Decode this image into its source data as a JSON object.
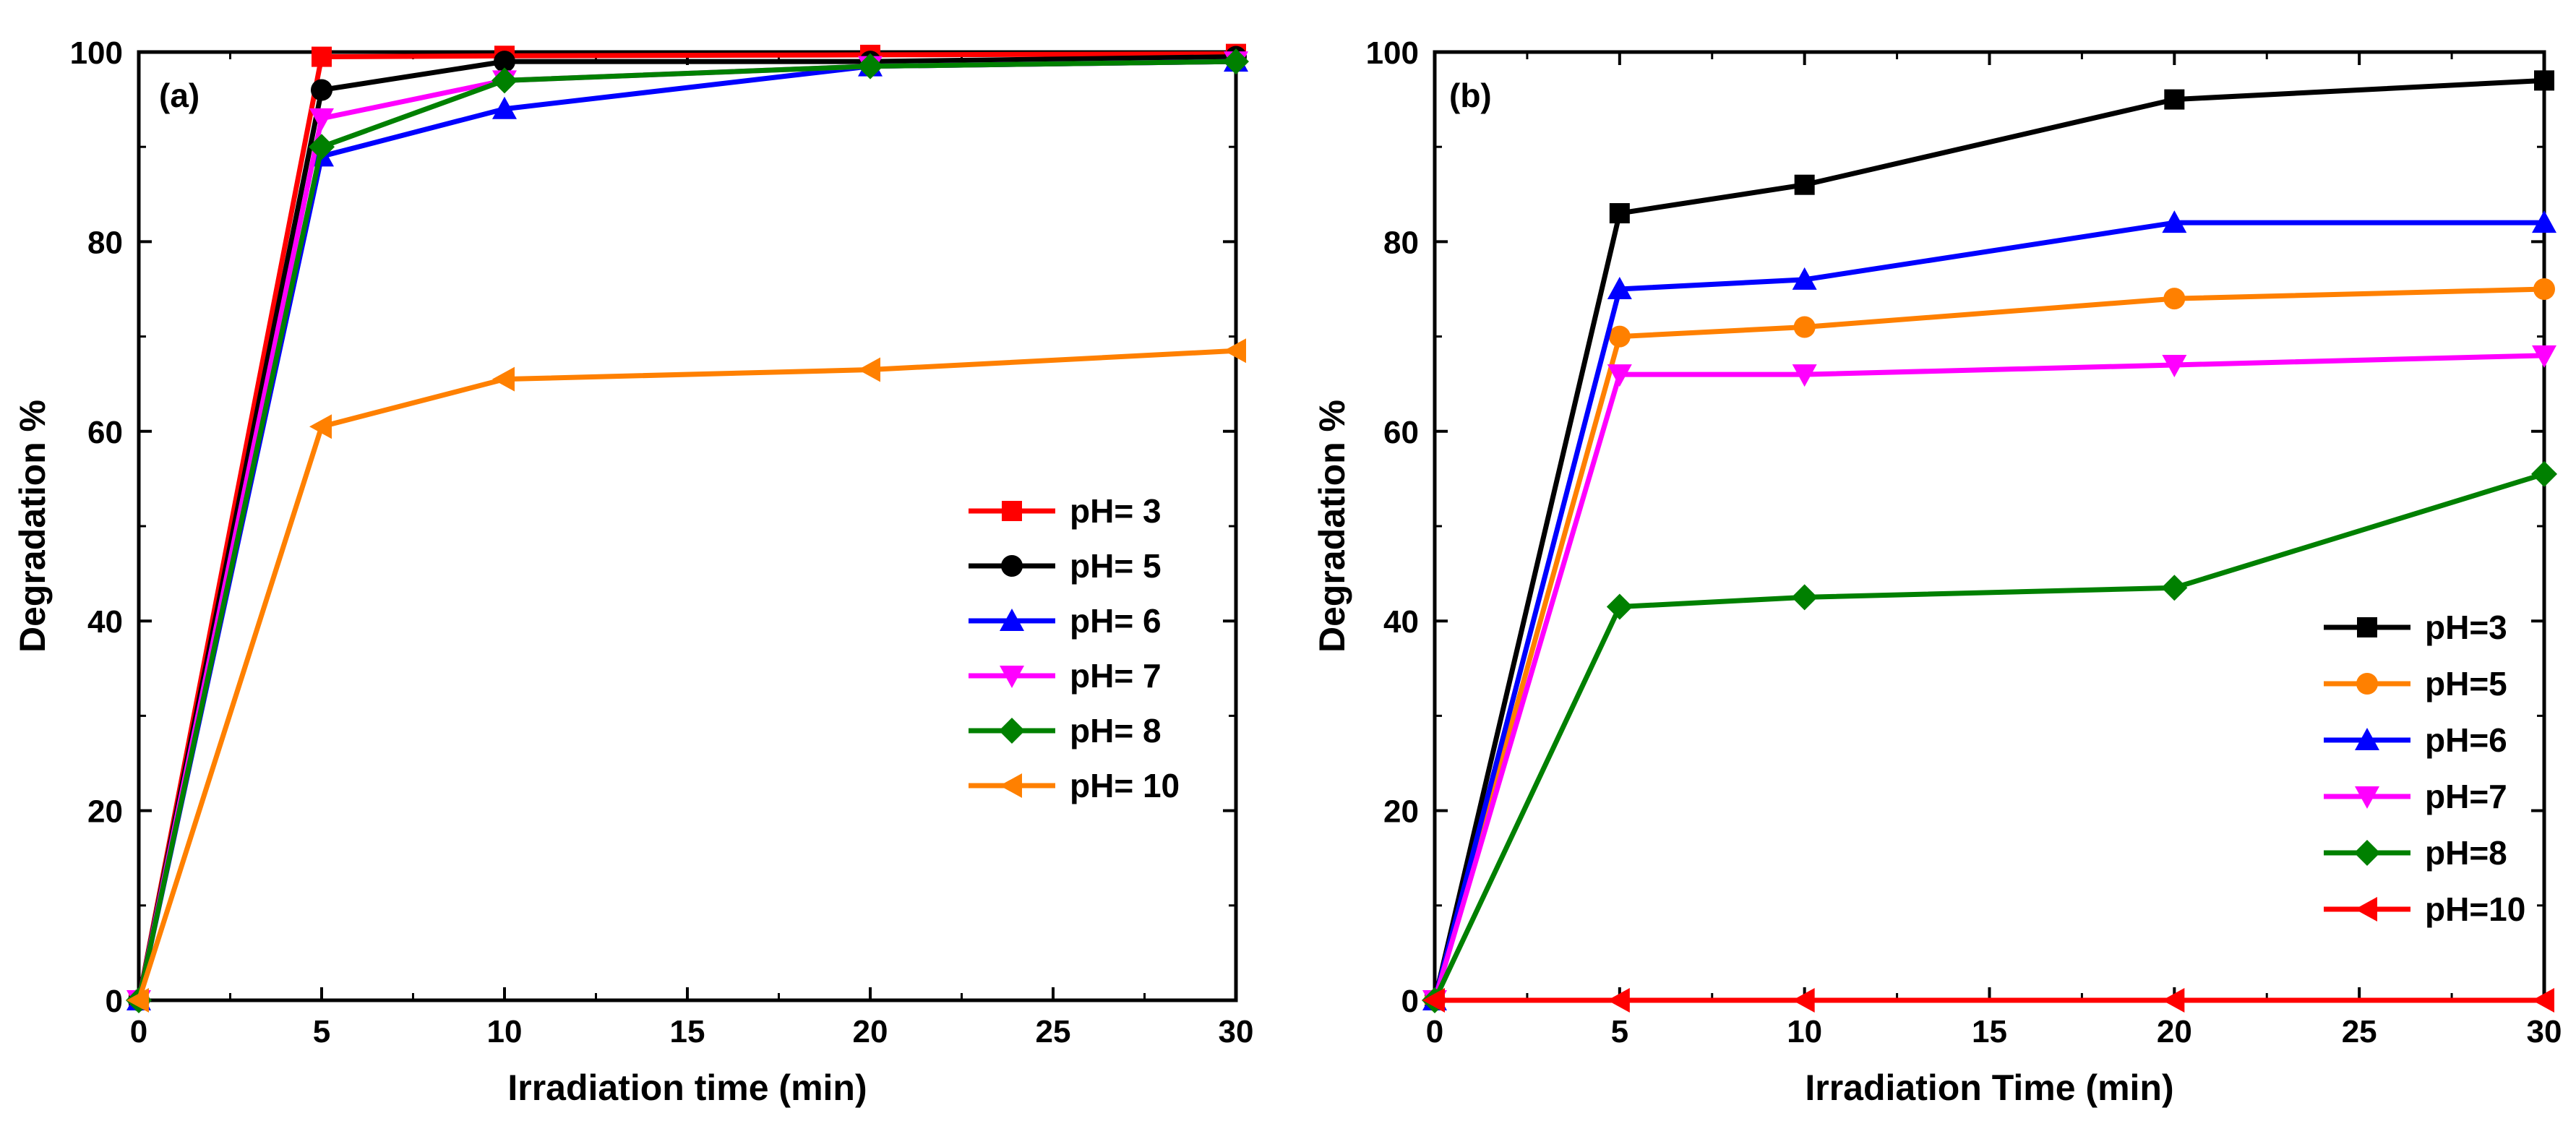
{
  "chart_data": [
    {
      "panel": "(a)",
      "type": "line",
      "xlabel": "Irradiation time (min)",
      "ylabel": "Degradation %",
      "xlim": [
        0,
        30
      ],
      "ylim": [
        0,
        100
      ],
      "xticks": [
        0,
        5,
        10,
        15,
        20,
        25,
        30
      ],
      "yticks": [
        0,
        20,
        40,
        60,
        80,
        100
      ],
      "x": [
        0,
        5,
        10,
        20,
        30
      ],
      "legend_position": "center-right",
      "series": [
        {
          "name": "pH= 3",
          "color": "#ff0000",
          "marker": "square",
          "values": [
            0,
            99.5,
            99.6,
            99.7,
            99.8
          ]
        },
        {
          "name": "pH= 5",
          "color": "#000000",
          "marker": "circle",
          "values": [
            0,
            96,
            99,
            99,
            99.5
          ]
        },
        {
          "name": "pH= 6",
          "color": "#0000ff",
          "marker": "triangle-up",
          "values": [
            0,
            89,
            94,
            98.5,
            99
          ]
        },
        {
          "name": "pH= 7",
          "color": "#ff00ff",
          "marker": "triangle-down",
          "values": [
            0,
            93,
            97,
            98.5,
            99
          ]
        },
        {
          "name": "pH= 8",
          "color": "#008000",
          "marker": "diamond",
          "values": [
            0,
            90,
            97,
            98.5,
            99
          ]
        },
        {
          "name": "pH= 10",
          "color": "#ff8000",
          "marker": "triangle-left",
          "values": [
            0,
            60.5,
            65.5,
            66.5,
            68.5
          ]
        }
      ]
    },
    {
      "panel": "(b)",
      "type": "line",
      "xlabel": "Irradiation Time (min)",
      "ylabel": "Degradation %",
      "xlim": [
        0,
        30
      ],
      "ylim": [
        0,
        100
      ],
      "xticks": [
        0,
        5,
        10,
        15,
        20,
        25,
        30
      ],
      "yticks": [
        0,
        20,
        40,
        60,
        80,
        100
      ],
      "x": [
        0,
        5,
        10,
        20,
        30
      ],
      "legend_position": "bottom-right",
      "series": [
        {
          "name": "pH=3",
          "color": "#000000",
          "marker": "square",
          "values": [
            0,
            83,
            86,
            95,
            97
          ]
        },
        {
          "name": "pH=5",
          "color": "#ff8000",
          "marker": "circle",
          "values": [
            0,
            70,
            71,
            74,
            75
          ]
        },
        {
          "name": "pH=6",
          "color": "#0000ff",
          "marker": "triangle-up",
          "values": [
            0,
            75,
            76,
            82,
            82
          ]
        },
        {
          "name": "pH=7",
          "color": "#ff00ff",
          "marker": "triangle-down",
          "values": [
            0,
            66,
            66,
            67,
            68
          ]
        },
        {
          "name": "pH=8",
          "color": "#008000",
          "marker": "diamond",
          "values": [
            0,
            41.5,
            42.5,
            43.5,
            55.5
          ]
        },
        {
          "name": "pH=10",
          "color": "#ff0000",
          "marker": "triangle-left",
          "values": [
            0,
            0,
            0,
            0,
            0
          ]
        }
      ]
    }
  ]
}
